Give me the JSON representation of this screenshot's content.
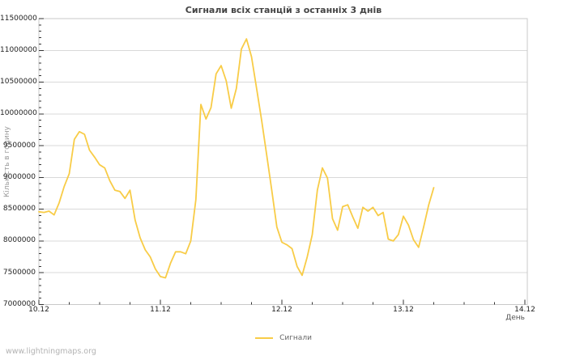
{
  "watermark": "www.lightningmaps.org",
  "chart_data": {
    "type": "line",
    "title": "Сигнали всіх станцій з останніх 3 днів",
    "xlabel": "День",
    "ylabel": "Кількість в годину",
    "x_tick_labels": [
      "10.12",
      "11.12",
      "12.12",
      "13.12",
      "14.12"
    ],
    "x_tick_days": [
      0,
      1,
      2,
      3,
      4
    ],
    "x_minor_step_days": 0.25,
    "xlim_days": [
      0,
      4
    ],
    "y_ticks": [
      7000000,
      7500000,
      8000000,
      8500000,
      9000000,
      9500000,
      10000000,
      10500000,
      11000000,
      11500000
    ],
    "y_minor_step": 100000,
    "ylim": [
      7000000,
      11500000
    ],
    "grid": "horizontal-only",
    "frame_color": "#c9c9c9",
    "grid_color": "#d9d9d9",
    "tick_color": "#333333",
    "legend": {
      "position": "bottom-center",
      "entries": [
        {
          "label": "Сигнали",
          "color": "#f8cc47"
        }
      ]
    },
    "series": [
      {
        "name": "Сигнали",
        "color": "#f8cc47",
        "x_start_day": 0,
        "x_step_hours": 1,
        "values": [
          8460000,
          8450000,
          8470000,
          8410000,
          8600000,
          8860000,
          9060000,
          9600000,
          9720000,
          9680000,
          9430000,
          9320000,
          9200000,
          9150000,
          8950000,
          8800000,
          8780000,
          8670000,
          8800000,
          8330000,
          8050000,
          7860000,
          7750000,
          7560000,
          7440000,
          7420000,
          7650000,
          7830000,
          7830000,
          7800000,
          8000000,
          8650000,
          10150000,
          9920000,
          10100000,
          10630000,
          10760000,
          10520000,
          10090000,
          10400000,
          11020000,
          11180000,
          10900000,
          10400000,
          9900000,
          9350000,
          8800000,
          8220000,
          7980000,
          7940000,
          7880000,
          7600000,
          7460000,
          7750000,
          8100000,
          8800000,
          9150000,
          8990000,
          8350000,
          8170000,
          8540000,
          8570000,
          8380000,
          8200000,
          8530000,
          8470000,
          8530000,
          8400000,
          8450000,
          8030000,
          8000000,
          8100000,
          8390000,
          8250000,
          8020000,
          7900000,
          8220000,
          8570000,
          8840000
        ]
      }
    ]
  }
}
